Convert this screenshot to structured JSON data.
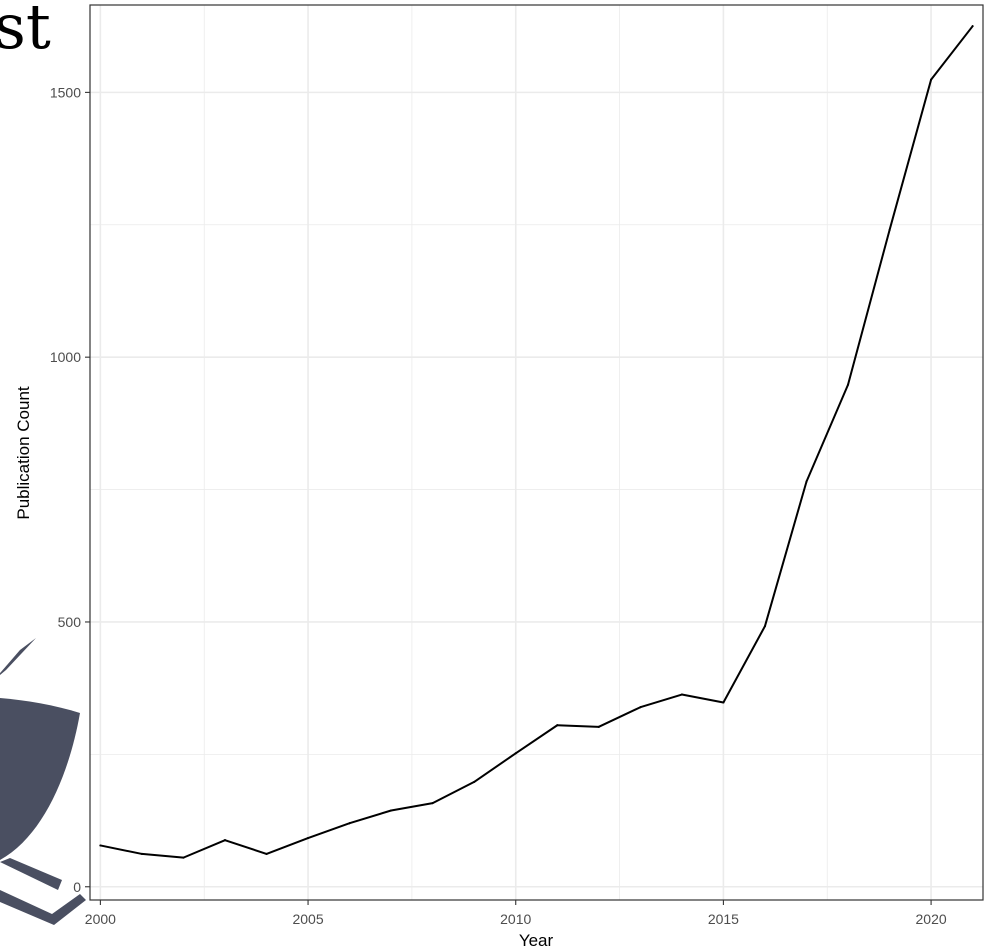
{
  "header": {
    "title_fragment": "st"
  },
  "chart_data": {
    "type": "line",
    "title": "",
    "xlabel": "Year",
    "ylabel": "Publication Count",
    "xlim": [
      1999.75,
      2021.25
    ],
    "ylim": [
      -25,
      1665
    ],
    "x_ticks": [
      2000,
      2005,
      2010,
      2015,
      2020
    ],
    "y_ticks": [
      0,
      500,
      1000,
      1500
    ],
    "grid": true,
    "line_color": "#000000",
    "x": [
      2000,
      2001,
      2002,
      2003,
      2004,
      2005,
      2006,
      2007,
      2008,
      2009,
      2010,
      2011,
      2012,
      2013,
      2014,
      2015,
      2016,
      2017,
      2018,
      2019,
      2020,
      2021
    ],
    "y": [
      78,
      62,
      55,
      88,
      62,
      92,
      120,
      144,
      158,
      198,
      252,
      305,
      302,
      339,
      363,
      348,
      492,
      765,
      948,
      1240,
      1524,
      1625
    ]
  },
  "colors": {
    "panel_border": "#333333",
    "grid": "#ebebeb",
    "logo": "#4a4f61"
  }
}
